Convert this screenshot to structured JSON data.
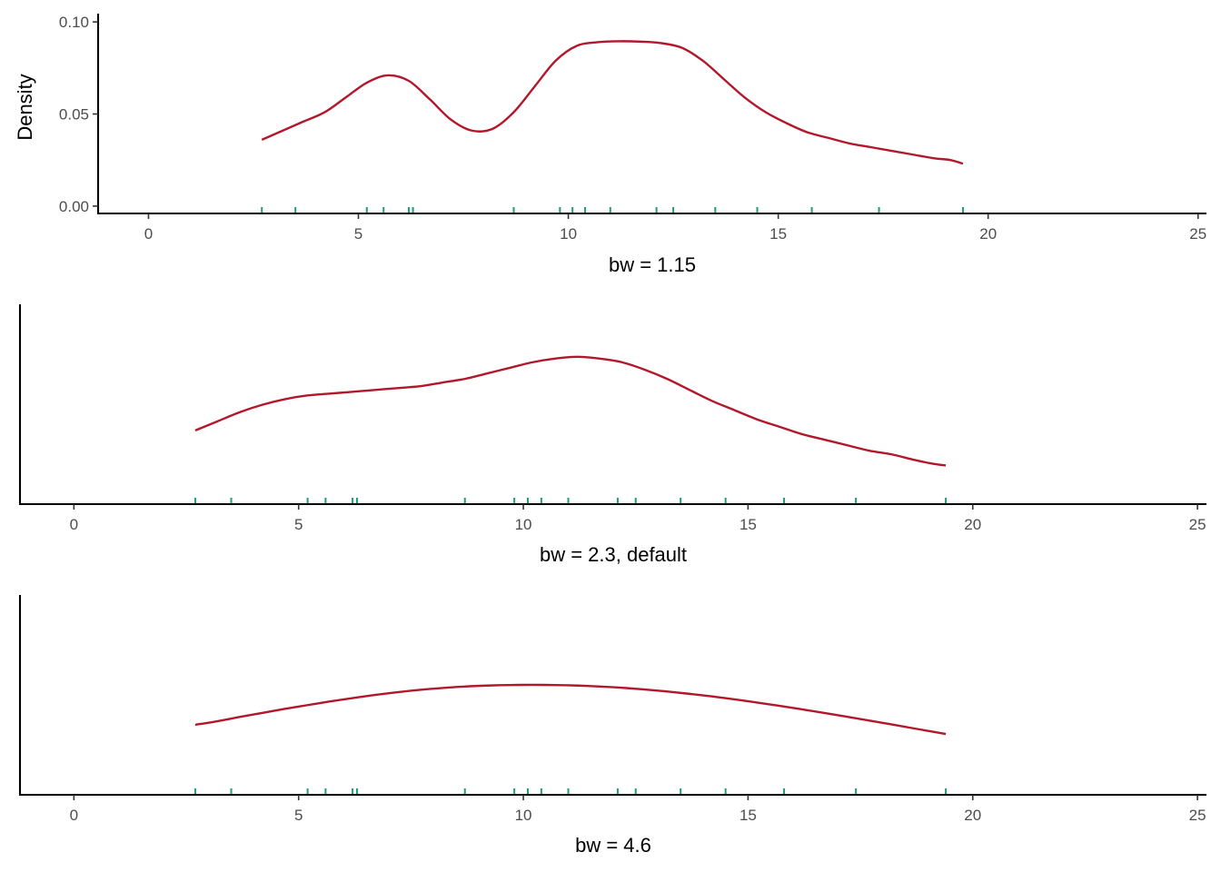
{
  "colors": {
    "curve": "#B2182B",
    "rug": "#1B9E77"
  },
  "chart_data": [
    {
      "type": "line",
      "title": "",
      "xlabel": "bw = 1.15",
      "ylabel": "Density",
      "xlim": [
        -1.2,
        25.2
      ],
      "ylim": [
        -0.004,
        0.1045
      ],
      "x_ticks": [
        0,
        5,
        10,
        15,
        20,
        25
      ],
      "y_ticks": [
        0.0,
        0.05,
        0.1
      ],
      "y_tick_labels": [
        "0.00",
        "0.05",
        "0.10"
      ],
      "grid": false,
      "rug": [
        2.7,
        3.5,
        5.2,
        5.6,
        6.2,
        6.3,
        8.7,
        9.8,
        10.1,
        10.4,
        11.0,
        12.1,
        12.5,
        13.5,
        14.5,
        15.8,
        17.4,
        19.4
      ],
      "series": [
        {
          "x": [
            2.7,
            3.2,
            3.7,
            4.2,
            4.7,
            5.2,
            5.7,
            6.2,
            6.7,
            7.2,
            7.7,
            8.2,
            8.7,
            9.2,
            9.7,
            10.2,
            10.7,
            11.2,
            11.7,
            12.2,
            12.7,
            13.2,
            13.7,
            14.2,
            14.7,
            15.2,
            15.7,
            16.2,
            16.7,
            17.2,
            17.7,
            18.2,
            18.7,
            19.1,
            19.4
          ],
          "y": [
            0.036,
            0.041,
            0.046,
            0.051,
            0.059,
            0.067,
            0.071,
            0.068,
            0.058,
            0.047,
            0.041,
            0.042,
            0.051,
            0.065,
            0.079,
            0.087,
            0.089,
            0.0895,
            0.0893,
            0.0885,
            0.086,
            0.079,
            0.069,
            0.059,
            0.051,
            0.045,
            0.04,
            0.037,
            0.034,
            0.032,
            0.03,
            0.028,
            0.026,
            0.025,
            0.023
          ]
        }
      ]
    },
    {
      "type": "line",
      "title": "",
      "xlabel": "bw = 2.3, default",
      "ylabel": "",
      "xlim": [
        -1.2,
        25.2
      ],
      "ylim": [
        -0.004,
        0.1045
      ],
      "x_ticks": [
        0,
        5,
        10,
        15,
        20,
        25
      ],
      "y_ticks": [],
      "grid": false,
      "rug": [
        2.7,
        3.5,
        5.2,
        5.6,
        6.2,
        6.3,
        8.7,
        9.8,
        10.1,
        10.4,
        11.0,
        12.1,
        12.5,
        13.5,
        14.5,
        15.8,
        17.4,
        19.4
      ],
      "series": [
        {
          "x": [
            2.7,
            3.2,
            3.7,
            4.2,
            4.7,
            5.2,
            5.7,
            6.2,
            6.7,
            7.2,
            7.7,
            8.2,
            8.7,
            9.2,
            9.7,
            10.2,
            10.7,
            11.2,
            11.7,
            12.2,
            12.7,
            13.2,
            13.7,
            14.2,
            14.7,
            15.2,
            15.7,
            16.2,
            16.7,
            17.2,
            17.7,
            18.2,
            18.7,
            19.1,
            19.4
          ],
          "y": [
            0.036,
            0.041,
            0.046,
            0.05,
            0.053,
            0.055,
            0.056,
            0.057,
            0.058,
            0.059,
            0.06,
            0.062,
            0.064,
            0.067,
            0.07,
            0.073,
            0.075,
            0.076,
            0.075,
            0.073,
            0.069,
            0.064,
            0.058,
            0.052,
            0.047,
            0.042,
            0.038,
            0.034,
            0.031,
            0.028,
            0.025,
            0.023,
            0.02,
            0.018,
            0.017
          ]
        }
      ]
    },
    {
      "type": "line",
      "title": "",
      "xlabel": "bw = 4.6",
      "ylabel": "",
      "xlim": [
        -1.2,
        25.2
      ],
      "ylim": [
        -0.004,
        0.1045
      ],
      "x_ticks": [
        0,
        5,
        10,
        15,
        20,
        25
      ],
      "y_ticks": [],
      "grid": false,
      "rug": [
        2.7,
        3.5,
        5.2,
        5.6,
        6.2,
        6.3,
        8.7,
        9.8,
        10.1,
        10.4,
        11.0,
        12.1,
        12.5,
        13.5,
        14.5,
        15.8,
        17.4,
        19.4
      ],
      "series": [
        {
          "x": [
            2.7,
            3.2,
            3.7,
            4.2,
            4.7,
            5.2,
            5.7,
            6.2,
            6.7,
            7.2,
            7.7,
            8.2,
            8.7,
            9.2,
            9.7,
            10.2,
            10.7,
            11.2,
            11.7,
            12.2,
            12.7,
            13.2,
            13.7,
            14.2,
            14.7,
            15.2,
            15.7,
            16.2,
            16.7,
            17.2,
            17.7,
            18.2,
            18.7,
            19.1,
            19.4
          ],
          "y": [
            0.034,
            0.036,
            0.0383,
            0.0405,
            0.0427,
            0.0447,
            0.0467,
            0.0485,
            0.0502,
            0.0517,
            0.053,
            0.054,
            0.0548,
            0.0553,
            0.0556,
            0.0557,
            0.0556,
            0.0553,
            0.0548,
            0.0541,
            0.0532,
            0.0521,
            0.0508,
            0.0494,
            0.0478,
            0.0461,
            0.0443,
            0.0424,
            0.0404,
            0.0384,
            0.0363,
            0.0342,
            0.032,
            0.0303,
            0.029
          ]
        }
      ]
    }
  ]
}
